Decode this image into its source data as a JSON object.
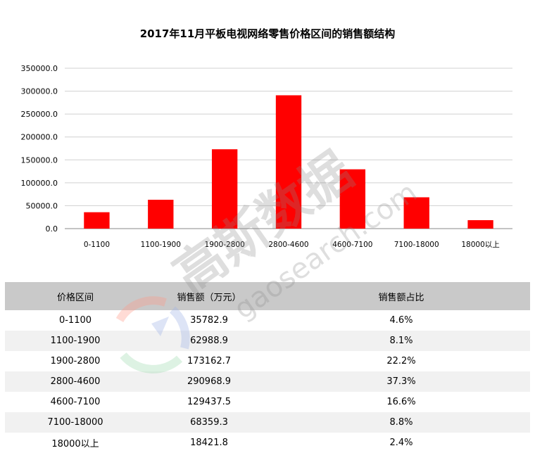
{
  "chart_data": {
    "type": "bar",
    "title": "2017年11月平板电视网络零售价格区间的销售额结构",
    "categories": [
      "0-1100",
      "1100-1900",
      "1900-2800",
      "2800-4600",
      "4600-7100",
      "7100-18000",
      "18000以上"
    ],
    "values": [
      35782.9,
      62988.9,
      173162.7,
      290968.9,
      129437.5,
      68359.3,
      18421.8
    ],
    "ylim": [
      0,
      350000
    ],
    "yticks": [
      "0.0",
      "50000.0",
      "100000.0",
      "150000.0",
      "200000.0",
      "250000.0",
      "300000.0",
      "350000.0"
    ],
    "grid": true,
    "bar_color": "#ff0000"
  },
  "table": {
    "headers": [
      "价格区间",
      "销售额（万元）",
      "销售额占比"
    ],
    "rows": [
      [
        "0-1100",
        "35782.9",
        "4.6%"
      ],
      [
        "1100-1900",
        "62988.9",
        "8.1%"
      ],
      [
        "1900-2800",
        "173162.7",
        "22.2%"
      ],
      [
        "2800-4600",
        "290968.9",
        "37.3%"
      ],
      [
        "4600-7100",
        "129437.5",
        "16.6%"
      ],
      [
        "7100-18000",
        "68359.3",
        "8.8%"
      ],
      [
        "18000以上",
        "18421.8",
        "2.4%"
      ]
    ]
  },
  "watermark": {
    "brand": "高斯数据",
    "domain": "gaosearch.com"
  }
}
